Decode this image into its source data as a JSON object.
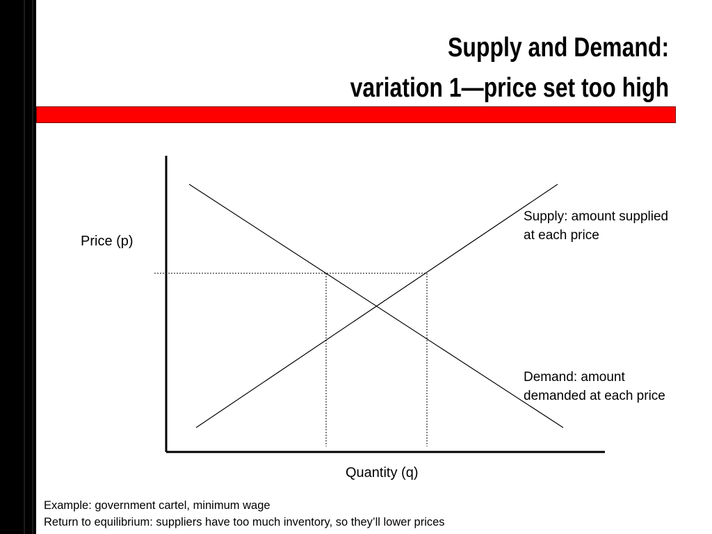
{
  "slide": {
    "title_line1": "Supply and Demand:",
    "title_line2": "variation 1—price set too high"
  },
  "chart_data": {
    "type": "line",
    "xlabel": "Quantity (q)",
    "ylabel": "Price (p)",
    "series": [
      {
        "name": "Supply: amount supplied at each price",
        "role": "supply",
        "slope": "upward"
      },
      {
        "name": "Demand: amount demanded at each price",
        "role": "demand",
        "slope": "downward"
      }
    ],
    "price_ceiling_line": "dashed horizontal price above equilibrium",
    "annotations": {
      "supply_line1": "Supply: amount supplied",
      "supply_line2": "at each price",
      "demand_line1": "Demand: amount",
      "demand_line2": "demanded at each price"
    }
  },
  "footer": {
    "line1": "Example: government cartel, minimum wage",
    "line2": "Return to equilibrium: suppliers have too much inventory, so they’ll lower prices"
  },
  "colors": {
    "accent_bar": "#ff0000",
    "side_bar": "#000000"
  }
}
